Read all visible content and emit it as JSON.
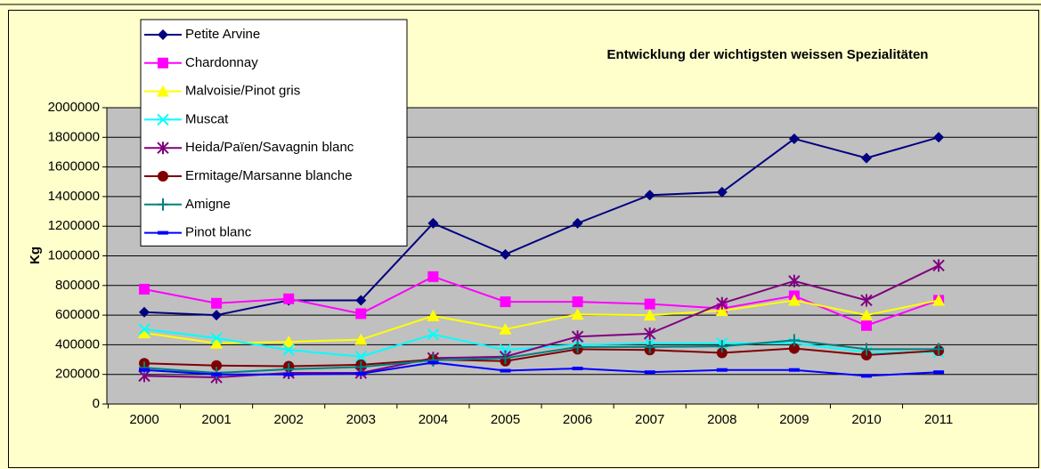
{
  "chart_data": {
    "type": "line",
    "title": "Entwicklung der wichtigsten weissen Spezialitäten",
    "y_label": "Kg",
    "categories": [
      "2000",
      "2001",
      "2002",
      "2003",
      "2004",
      "2005",
      "2006",
      "2007",
      "2008",
      "2009",
      "2010",
      "2011"
    ],
    "ylim": [
      0,
      2000000
    ],
    "yticks": [
      0,
      200000,
      400000,
      600000,
      800000,
      1000000,
      1200000,
      1400000,
      1600000,
      1800000,
      2000000
    ],
    "grid": true,
    "legend": "top-left",
    "series": [
      {
        "name": "Petite Arvine",
        "color": "#000080",
        "marker": "diamond",
        "values": [
          620000,
          600000,
          700000,
          700000,
          1220000,
          1010000,
          1220000,
          1410000,
          1430000,
          1790000,
          1660000,
          1800000
        ]
      },
      {
        "name": "Chardonnay",
        "color": "#ff00ff",
        "marker": "square",
        "values": [
          775000,
          680000,
          710000,
          610000,
          860000,
          690000,
          690000,
          675000,
          645000,
          730000,
          530000,
          700000
        ]
      },
      {
        "name": "Malvoisie/Pinot gris",
        "color": "#ffff00",
        "marker": "triangle",
        "values": [
          480000,
          410000,
          420000,
          435000,
          595000,
          505000,
          605000,
          600000,
          630000,
          700000,
          600000,
          700000
        ]
      },
      {
        "name": "Muscat",
        "color": "#00ffff",
        "marker": "x",
        "values": [
          505000,
          445000,
          365000,
          320000,
          470000,
          365000,
          400000,
          410000,
          410000,
          410000,
          350000,
          350000
        ]
      },
      {
        "name": "Heida/Païen/Savagnin blanc",
        "color": "#800080",
        "marker": "star",
        "values": [
          190000,
          180000,
          210000,
          210000,
          310000,
          320000,
          455000,
          475000,
          680000,
          830000,
          700000,
          935000
        ]
      },
      {
        "name": "Ermitage/Marsanne blanche",
        "color": "#800000",
        "marker": "circle",
        "values": [
          275000,
          260000,
          255000,
          265000,
          300000,
          290000,
          370000,
          365000,
          345000,
          375000,
          330000,
          360000
        ]
      },
      {
        "name": "Amigne",
        "color": "#008080",
        "marker": "plus",
        "values": [
          245000,
          210000,
          235000,
          250000,
          295000,
          310000,
          385000,
          385000,
          390000,
          430000,
          370000,
          370000
        ]
      },
      {
        "name": "Pinot blanc",
        "color": "#0000ff",
        "marker": "dash",
        "values": [
          230000,
          200000,
          200000,
          205000,
          280000,
          225000,
          240000,
          215000,
          230000,
          230000,
          190000,
          215000
        ]
      }
    ]
  }
}
